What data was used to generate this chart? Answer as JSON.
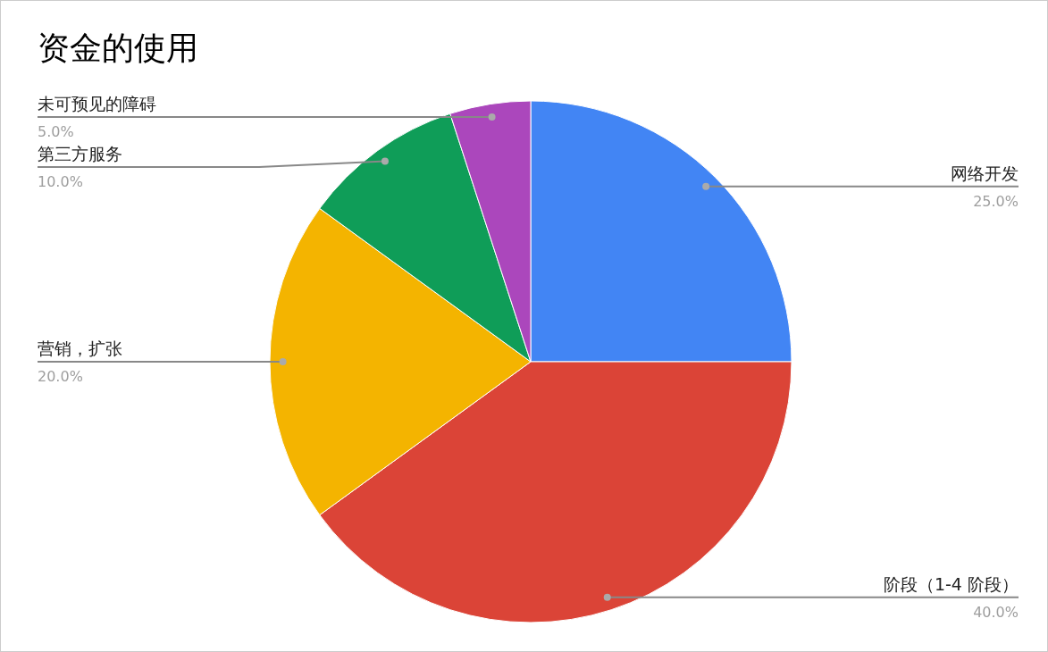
{
  "chart_data": {
    "type": "pie",
    "title": "资金的使用",
    "categories": [
      "网络开发",
      "阶段（1-4 阶段）",
      "营销，扩张",
      "第三方服务",
      "未可预见的障碍"
    ],
    "values": [
      25,
      40,
      20,
      10,
      5
    ],
    "value_labels": [
      "25.0%",
      "40.0%",
      "20.0%",
      "10.0%",
      "5.0%"
    ],
    "colors": [
      "#4285f4",
      "#db4437",
      "#f4b400",
      "#0f9d58",
      "#ab47bc"
    ]
  }
}
